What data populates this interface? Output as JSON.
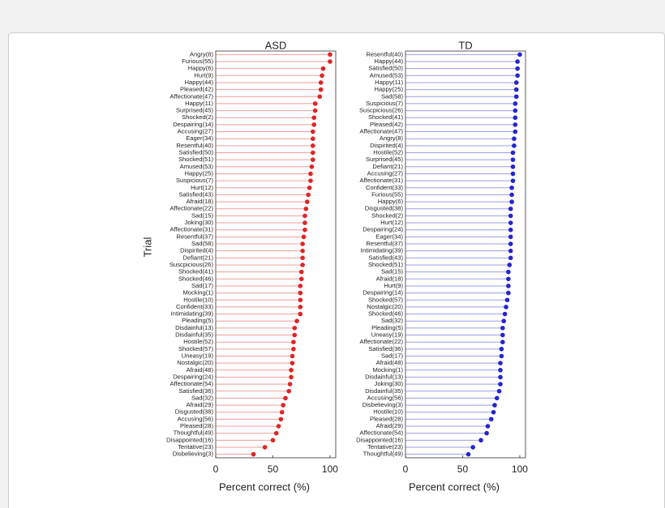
{
  "chart_data": [
    {
      "type": "lollipop",
      "title": "ASD",
      "ylabel": "Trial",
      "xlabel": "Percent correct (%)",
      "color": "#e02424",
      "xlim": [
        0,
        105
      ],
      "xticks": [
        0,
        50,
        100
      ],
      "categories": [
        "Angry(8)",
        "Furious(55)",
        "Happy(6)",
        "Hurt(9)",
        "Happy(44)",
        "Pleased(42)",
        "Affectionate(47)",
        "Happy(11)",
        "Surprised(45)",
        "Shocked(2)",
        "Despairing(14)",
        "Accusing(27)",
        "Eager(34)",
        "Resentful(40)",
        "Satisfied(50)",
        "Shocked(51)",
        "Amused(53)",
        "Happy(25)",
        "Suspicious(7)",
        "Hurt(12)",
        "Satisfied(43)",
        "Afraid(18)",
        "Affectionate(22)",
        "Sad(15)",
        "Joking(30)",
        "Affectionate(31)",
        "Resentful(37)",
        "Sad(58)",
        "Dispirited(4)",
        "Defiant(21)",
        "Suscpicious(26)",
        "Shocked(41)",
        "Shocked(46)",
        "Sad(17)",
        "Mocking(1)",
        "Hostile(10)",
        "Confident(33)",
        "Intimidating(39)",
        "Pleading(5)",
        "Disdainful(13)",
        "Disdainful(35)",
        "Hostile(52)",
        "Shocked(57)",
        "Uneasy(19)",
        "Nostalgic(20)",
        "Afraid(48)",
        "Despairing(24)",
        "Affectionate(54)",
        "Satisfied(36)",
        "Sad(32)",
        "Afraid(29)",
        "Disgusted(38)",
        "Accusing(56)",
        "Pleased(28)",
        "Thoughtful(49)",
        "Disappointed(16)",
        "Tentative(23)",
        "Disbelieving(3)"
      ],
      "values": [
        100,
        100,
        94,
        93,
        92,
        92,
        91,
        87,
        87,
        86,
        86,
        85,
        85,
        85,
        85,
        85,
        84,
        83,
        83,
        82,
        81,
        80,
        79,
        78,
        78,
        78,
        77,
        76,
        76,
        76,
        76,
        75,
        75,
        74,
        74,
        74,
        74,
        74,
        71,
        69,
        69,
        68,
        68,
        67,
        67,
        66,
        66,
        65,
        64,
        61,
        59,
        58,
        57,
        55,
        53,
        50,
        43,
        33
      ]
    },
    {
      "type": "lollipop",
      "title": "TD",
      "xlabel": "Percent correct (%)",
      "color": "#2424d0",
      "xlim": [
        0,
        105
      ],
      "xticks": [
        0,
        50,
        100
      ],
      "categories": [
        "Resentful(40)",
        "Happy(44)",
        "Satisfied(50)",
        "Amused(53)",
        "Happy(11)",
        "Happy(25)",
        "Sad(58)",
        "Suspicious(7)",
        "Suscpicious(26)",
        "Shocked(41)",
        "Pleased(42)",
        "Affectionate(47)",
        "Angry(8)",
        "Dispirited(4)",
        "Hostile(52)",
        "Surprised(45)",
        "Defiant(21)",
        "Accusing(27)",
        "Affectionate(31)",
        "Confident(33)",
        "Furious(55)",
        "Happy(6)",
        "Disgusted(38)",
        "Shocked(2)",
        "Hurt(12)",
        "Despairing(24)",
        "Eager(34)",
        "Resentful(37)",
        "Intimidating(39)",
        "Satisfied(43)",
        "Shocked(51)",
        "Sad(15)",
        "Afraid(18)",
        "Hurt(9)",
        "Despairing(14)",
        "Shocked(57)",
        "Nostalgic(20)",
        "Shocked(46)",
        "Sad(32)",
        "Pleading(5)",
        "Uneasy(19)",
        "Affectionate(22)",
        "Satisfied(36)",
        "Sad(17)",
        "Afraid(48)",
        "Mocking(1)",
        "Disdainful(13)",
        "Joking(30)",
        "Disdainful(35)",
        "Accusing(56)",
        "Disbelieving(3)",
        "Hostile(10)",
        "Pleased(28)",
        "Afraid(29)",
        "Affectionate(54)",
        "Disappointed(16)",
        "Tentative(23)",
        "Thoughtful(49)"
      ],
      "values": [
        100,
        98,
        98,
        98,
        97,
        97,
        97,
        96,
        96,
        96,
        96,
        96,
        95,
        95,
        94,
        94,
        94,
        94,
        94,
        93,
        93,
        93,
        92,
        92,
        92,
        92,
        92,
        92,
        92,
        92,
        91,
        90,
        90,
        90,
        90,
        89,
        88,
        87,
        86,
        85,
        85,
        85,
        84,
        84,
        83,
        83,
        83,
        83,
        82,
        80,
        78,
        77,
        75,
        72,
        71,
        66,
        59,
        55
      ]
    }
  ]
}
